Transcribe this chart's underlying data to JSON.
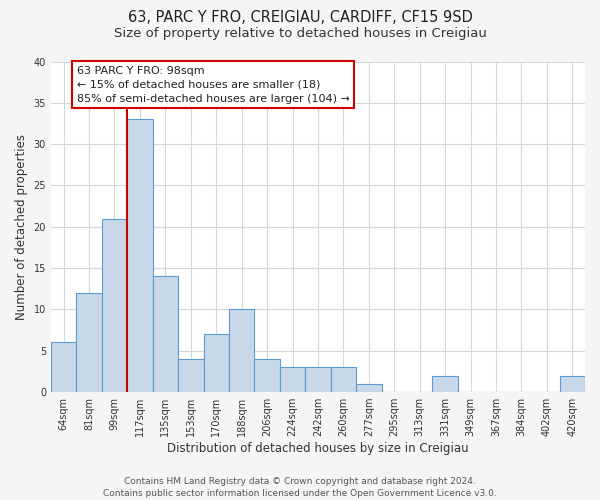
{
  "title": "63, PARC Y FRO, CREIGIAU, CARDIFF, CF15 9SD",
  "subtitle": "Size of property relative to detached houses in Creigiau",
  "xlabel": "Distribution of detached houses by size in Creigiau",
  "ylabel": "Number of detached properties",
  "bin_labels": [
    "64sqm",
    "81sqm",
    "99sqm",
    "117sqm",
    "135sqm",
    "153sqm",
    "170sqm",
    "188sqm",
    "206sqm",
    "224sqm",
    "242sqm",
    "260sqm",
    "277sqm",
    "295sqm",
    "313sqm",
    "331sqm",
    "349sqm",
    "367sqm",
    "384sqm",
    "402sqm",
    "420sqm"
  ],
  "bar_values": [
    6,
    12,
    21,
    33,
    14,
    4,
    7,
    10,
    4,
    3,
    3,
    3,
    1,
    0,
    0,
    2,
    0,
    0,
    0,
    0,
    2
  ],
  "bar_color": "#c8d8e8",
  "bar_edge_color": "#5b9bd5",
  "annotation_lines": [
    "63 PARC Y FRO: 98sqm",
    "← 15% of detached houses are smaller (18)",
    "85% of semi-detached houses are larger (104) →"
  ],
  "annotation_box_edge_color": "#cc0000",
  "red_line_x": 2,
  "ylim": [
    0,
    40
  ],
  "yticks": [
    0,
    5,
    10,
    15,
    20,
    25,
    30,
    35,
    40
  ],
  "footer_lines": [
    "Contains HM Land Registry data © Crown copyright and database right 2024.",
    "Contains public sector information licensed under the Open Government Licence v3.0."
  ],
  "background_color": "#f5f5f5",
  "plot_bg_color": "#ffffff",
  "grid_color": "#d0d8e0",
  "title_fontsize": 10.5,
  "subtitle_fontsize": 9.5,
  "axis_label_fontsize": 8.5,
  "tick_fontsize": 7,
  "footer_fontsize": 6.5,
  "annotation_fontsize": 8
}
